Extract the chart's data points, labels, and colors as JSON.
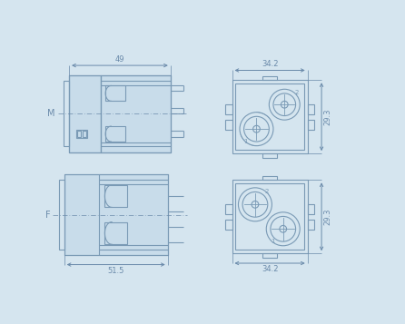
{
  "bg_color": "#d5e5ef",
  "line_color": "#7a9ab5",
  "dim_color": "#6a8aaa",
  "fill_color": "#c8dcea",
  "dim_49": "49",
  "dim_342_top": "34.2",
  "dim_342_bot": "34.2",
  "dim_293_top": "29.3",
  "dim_293_bot": "29.3",
  "dim_515": "51.5",
  "label_M": "M",
  "label_F": "F"
}
